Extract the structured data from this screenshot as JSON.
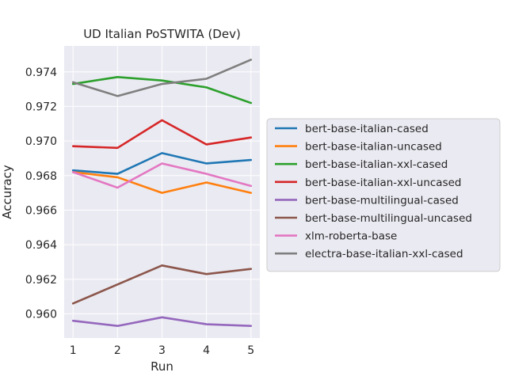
{
  "chart_data": {
    "type": "line",
    "title": "UD Italian PoSTWITA (Dev)",
    "xlabel": "Run",
    "ylabel": "Accuracy",
    "x": [
      1,
      2,
      3,
      4,
      5
    ],
    "xlim": [
      0.8,
      5.2
    ],
    "ylim": [
      0.9586,
      0.9755
    ],
    "yticks": [
      "0.960",
      "0.962",
      "0.964",
      "0.966",
      "0.968",
      "0.970",
      "0.972",
      "0.974"
    ],
    "ytick_values": [
      0.96,
      0.962,
      0.964,
      0.966,
      0.968,
      0.97,
      0.972,
      0.974
    ],
    "xticks": [
      "1",
      "2",
      "3",
      "4",
      "5"
    ],
    "grid": true,
    "legend_position": "right",
    "series": [
      {
        "name": "bert-base-italian-cased",
        "color": "#1f77b4",
        "values": [
          0.9683,
          0.9681,
          0.9693,
          0.9687,
          0.9689
        ]
      },
      {
        "name": "bert-base-italian-uncased",
        "color": "#ff7f0e",
        "values": [
          0.9682,
          0.9679,
          0.967,
          0.9676,
          0.967
        ]
      },
      {
        "name": "bert-base-italian-xxl-cased",
        "color": "#2ca02c",
        "values": [
          0.9733,
          0.9737,
          0.9735,
          0.9731,
          0.9722
        ]
      },
      {
        "name": "bert-base-italian-xxl-uncased",
        "color": "#d62728",
        "values": [
          0.9697,
          0.9696,
          0.9712,
          0.9698,
          0.9702
        ]
      },
      {
        "name": "bert-base-multilingual-cased",
        "color": "#9467bd",
        "values": [
          0.9596,
          0.9593,
          0.9598,
          0.9594,
          0.9593
        ]
      },
      {
        "name": "bert-base-multilingual-uncased",
        "color": "#8c564b",
        "values": [
          0.9606,
          0.9617,
          0.9628,
          0.9623,
          0.9626
        ]
      },
      {
        "name": "xlm-roberta-base",
        "color": "#e377c2",
        "values": [
          0.9682,
          0.9673,
          0.9687,
          0.9681,
          0.9674
        ]
      },
      {
        "name": "electra-base-italian-xxl-cased",
        "color": "#7f7f7f",
        "values": [
          0.9734,
          0.9726,
          0.9733,
          0.9736,
          0.9747
        ]
      }
    ]
  }
}
